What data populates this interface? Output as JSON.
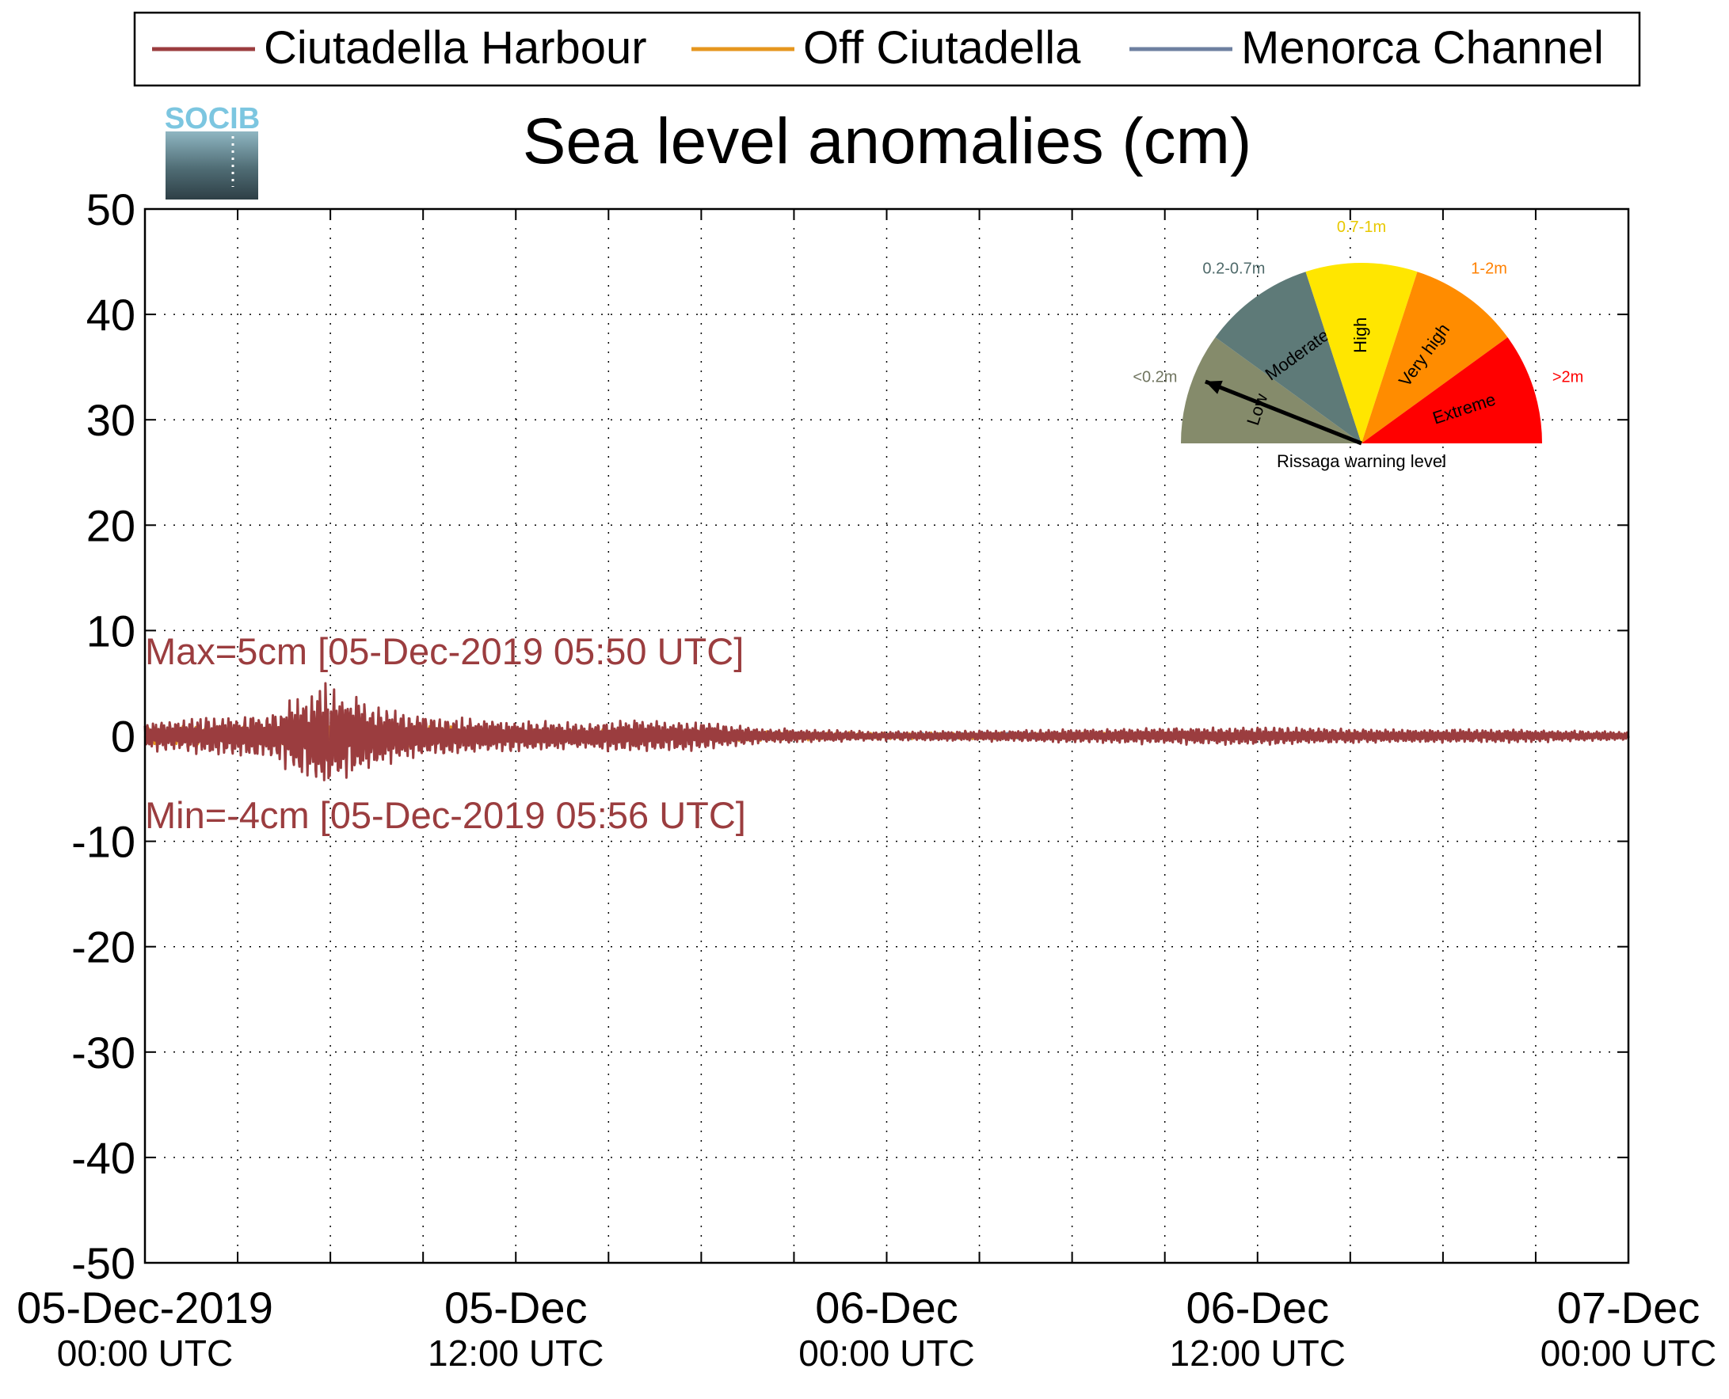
{
  "chart_data": {
    "type": "line",
    "title": "Sea level anomalies (cm)",
    "logo_text": "SOCIB",
    "xlabel": "",
    "ylabel": "",
    "x_range": [
      "2019-12-05T00:00Z",
      "2019-12-07T00:00Z"
    ],
    "ylim": [
      -50,
      50
    ],
    "y_ticks": [
      50,
      40,
      30,
      20,
      10,
      0,
      -10,
      -20,
      -30,
      -40,
      -50
    ],
    "y_tick_labels": [
      "50",
      "40",
      "30",
      "20",
      "10",
      "0",
      "-10",
      "-20",
      "-30",
      "-40",
      "-50"
    ],
    "x_ticks": [
      {
        "date": "05-Dec-2019",
        "time": "00:00 UTC"
      },
      {
        "date": "05-Dec",
        "time": "12:00 UTC"
      },
      {
        "date": "06-Dec",
        "time": "00:00 UTC"
      },
      {
        "date": "06-Dec",
        "time": "12:00 UTC"
      },
      {
        "date": "07-Dec",
        "time": "00:00 UTC"
      }
    ],
    "minor_grid_hours": 3,
    "grid": true,
    "legend_position": "top",
    "series": [
      {
        "name": "Ciutadella Harbour",
        "color": "#9b3d3f",
        "envelope_hours": [
          0,
          2,
          4,
          5,
          5.83,
          6.5,
          8,
          10,
          12,
          14,
          16,
          18,
          20,
          24,
          28,
          32,
          36,
          40,
          44,
          48
        ],
        "envelope_cm": [
          1.3,
          1.6,
          2.0,
          3.5,
          4.8,
          3.8,
          2.3,
          1.6,
          1.4,
          1.2,
          1.5,
          1.2,
          0.7,
          0.4,
          0.5,
          0.7,
          0.8,
          0.6,
          0.6,
          0.4
        ]
      },
      {
        "name": "Off Ciutadella",
        "color": "#e6961e",
        "envelope_hours": [
          0,
          4,
          6,
          8,
          12,
          18,
          24,
          36,
          48
        ],
        "envelope_cm": [
          0.8,
          0.9,
          1.4,
          1.0,
          0.7,
          0.5,
          0.3,
          0.3,
          0.2
        ]
      },
      {
        "name": "Menorca Channel",
        "color": "#6e80a0",
        "envelope_hours": [
          0,
          6,
          12,
          24,
          36,
          48
        ],
        "envelope_cm": [
          0.5,
          0.8,
          0.5,
          0.3,
          0.3,
          0.2
        ]
      }
    ],
    "annotations": {
      "max_label": "Max=5cm [05-Dec-2019 05:50 UTC]",
      "min_label": "Min=-4cm [05-Dec-2019 05:56 UTC]",
      "max_value": 5,
      "min_value": -4
    }
  },
  "gauge": {
    "title": "Rissaga warning level",
    "needle_level": "Low",
    "segments": [
      {
        "name": "Low",
        "range": "<0.2m",
        "color": "#858b6b",
        "range_color": "#707560"
      },
      {
        "name": "Moderate",
        "range": "0.2-0.7m",
        "color": "#5e7a78",
        "range_color": "#4f6a6a"
      },
      {
        "name": "High",
        "range": "0.7-1m",
        "color": "#ffe600",
        "range_color": "#e8c800"
      },
      {
        "name": "Very high",
        "range": "1-2m",
        "color": "#ff8c00",
        "range_color": "#ff8000"
      },
      {
        "name": "Extreme",
        "range": ">2m",
        "color": "#ff0000",
        "range_color": "#ff0000"
      }
    ]
  }
}
